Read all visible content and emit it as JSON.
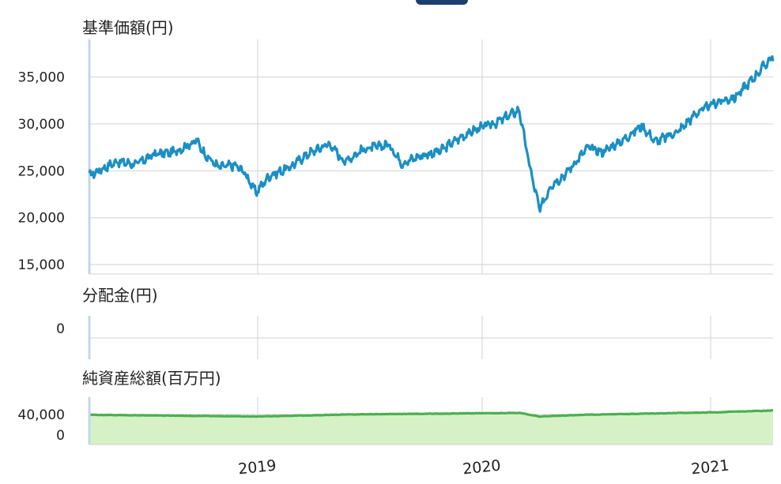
{
  "colors": {
    "nav_line": "#1a8fc4",
    "assets_line": "#4caf4f",
    "assets_fill": "#d6f1c6",
    "grid": "#d6d9dd",
    "left_axis": "#c4d6ea",
    "text": "#222222",
    "top_tab": "#1d3f6e"
  },
  "chart_data": [
    {
      "type": "line",
      "title": "基準価額(円)",
      "x_labels": [
        "2019",
        "2020",
        "2021"
      ],
      "y_ticks": [
        "35,000",
        "30,000",
        "25,000",
        "20,000",
        "15,000"
      ],
      "ylim": [
        14000,
        39000
      ],
      "xlim": [
        "2018-04-01",
        "2021-04-01"
      ],
      "grid": true,
      "series": [
        {
          "x": [
            "2018-04-01",
            "2018-05-15",
            "2018-06-15",
            "2018-07-15",
            "2018-08-15",
            "2018-09-20",
            "2018-10-05",
            "2018-10-25",
            "2018-11-20",
            "2018-12-05",
            "2018-12-24",
            "2019-01-15",
            "2019-02-15",
            "2019-03-15",
            "2019-04-20",
            "2019-05-15",
            "2019-06-15",
            "2019-07-25",
            "2019-08-15",
            "2019-09-15",
            "2019-10-15",
            "2019-11-15",
            "2019-12-15",
            "2020-01-15",
            "2020-02-19",
            "2020-03-01",
            "2020-03-10",
            "2020-03-23",
            "2020-04-10",
            "2020-05-01",
            "2020-06-08",
            "2020-06-30",
            "2020-07-31",
            "2020-09-02",
            "2020-09-25",
            "2020-10-31",
            "2020-11-30",
            "2020-12-31",
            "2021-01-29",
            "2021-02-26",
            "2021-03-31"
          ],
          "y": [
            24500,
            26000,
            25700,
            26800,
            27000,
            28200,
            26600,
            25400,
            25600,
            24900,
            22700,
            24500,
            25300,
            26700,
            27900,
            26000,
            27300,
            27800,
            25800,
            26600,
            27100,
            28500,
            29500,
            30200,
            31500,
            27500,
            24500,
            20800,
            23500,
            24500,
            27500,
            27000,
            28100,
            29800,
            28100,
            29200,
            31200,
            32300,
            32800,
            34700,
            37200
          ]
        }
      ]
    },
    {
      "type": "bar",
      "title": "分配金(円)",
      "y_ticks": [
        "0"
      ],
      "values": []
    },
    {
      "type": "area",
      "title": "純資産総額(百万円)",
      "y_ticks": [
        "40,000",
        "0"
      ],
      "ylim": [
        -30000,
        80000
      ],
      "series": [
        {
          "x": [
            "2018-04-01",
            "2018-12-24",
            "2019-06-01",
            "2020-02-19",
            "2020-03-23",
            "2020-06-01",
            "2020-12-31",
            "2021-03-31"
          ],
          "y": [
            39000,
            35000,
            40000,
            43500,
            35000,
            39000,
            45000,
            49000
          ]
        }
      ]
    }
  ]
}
